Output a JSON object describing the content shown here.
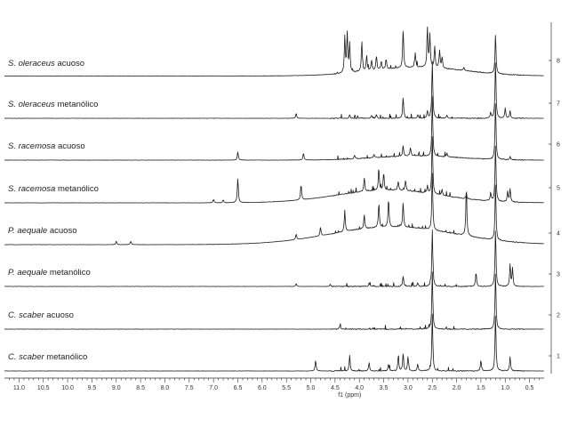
{
  "chart_data": {
    "type": "line",
    "xlabel": "f1 (ppm)",
    "x_ticks": [
      "11.0",
      "10.5",
      "10.0",
      "9.5",
      "9.0",
      "8.5",
      "8.0",
      "7.5",
      "7.0",
      "6.5",
      "6.0",
      "5.5",
      "5.0",
      "4.5",
      "4.0",
      "3.5",
      "3.0",
      "2.5",
      "2.0",
      "1.5",
      "1.0",
      "0.5"
    ],
    "xlim": [
      11.3,
      0.2
    ],
    "x_reversed": true,
    "right_axis_ticks": [
      "1",
      "2",
      "3",
      "4",
      "5",
      "6",
      "7",
      "8"
    ],
    "grid": false,
    "series": [
      {
        "species": "S. oleraceus",
        "extract": "acuoso",
        "index": 8,
        "baseline": 0.02,
        "hump": {
          "center": 2.8,
          "width": 1.4,
          "height": 0.12
        },
        "peaks": [
          [
            4.3,
            0.5
          ],
          [
            4.25,
            0.55
          ],
          [
            4.2,
            0.4
          ],
          [
            3.95,
            0.42
          ],
          [
            3.85,
            0.22
          ],
          [
            3.75,
            0.15
          ],
          [
            3.65,
            0.2
          ],
          [
            3.55,
            0.12
          ],
          [
            3.45,
            0.15
          ],
          [
            3.1,
            0.55
          ],
          [
            2.85,
            0.2
          ],
          [
            2.6,
            0.55
          ],
          [
            2.55,
            0.45
          ],
          [
            2.45,
            0.3
          ],
          [
            2.35,
            0.25
          ],
          [
            2.3,
            0.15
          ],
          [
            1.85,
            0.05
          ],
          [
            1.2,
            0.55
          ]
        ]
      },
      {
        "species": "S. oleraceus",
        "extract": "metanólico",
        "index": 7,
        "baseline": 0.0,
        "hump": null,
        "peaks": [
          [
            5.3,
            0.07
          ],
          [
            4.2,
            0.05
          ],
          [
            3.75,
            0.04
          ],
          [
            3.65,
            0.05
          ],
          [
            3.1,
            0.3
          ],
          [
            2.8,
            0.05
          ],
          [
            2.6,
            0.1
          ],
          [
            2.5,
            0.8
          ],
          [
            2.2,
            0.05
          ],
          [
            1.3,
            0.08
          ],
          [
            1.2,
            0.8
          ],
          [
            1.0,
            0.15
          ],
          [
            0.9,
            0.1
          ]
        ]
      },
      {
        "species": "S. racemosa",
        "extract": "acuoso",
        "index": 6,
        "baseline": 0.0,
        "hump": {
          "center": 2.8,
          "width": 1.2,
          "height": 0.06
        },
        "peaks": [
          [
            6.5,
            0.12
          ],
          [
            5.15,
            0.1
          ],
          [
            4.1,
            0.05
          ],
          [
            3.7,
            0.05
          ],
          [
            3.1,
            0.15
          ],
          [
            2.95,
            0.12
          ],
          [
            2.5,
            0.8
          ],
          [
            2.2,
            0.05
          ],
          [
            1.2,
            0.8
          ],
          [
            0.9,
            0.05
          ]
        ]
      },
      {
        "species": "S. racemosa",
        "extract": "metanólico",
        "index": 5,
        "baseline": 0.0,
        "hump": {
          "center": 3.4,
          "width": 1.5,
          "height": 0.18
        },
        "peaks": [
          [
            7.0,
            0.05
          ],
          [
            6.8,
            0.04
          ],
          [
            6.5,
            0.35
          ],
          [
            5.2,
            0.22
          ],
          [
            3.9,
            0.18
          ],
          [
            3.6,
            0.3
          ],
          [
            3.5,
            0.25
          ],
          [
            3.2,
            0.12
          ],
          [
            3.05,
            0.15
          ],
          [
            2.6,
            0.1
          ],
          [
            2.5,
            0.8
          ],
          [
            2.3,
            0.08
          ],
          [
            1.8,
            0.06
          ],
          [
            1.3,
            0.12
          ],
          [
            1.2,
            0.8
          ],
          [
            0.95,
            0.15
          ],
          [
            0.9,
            0.18
          ]
        ]
      },
      {
        "species": "P. aequale",
        "extract": "acuoso",
        "index": 4,
        "baseline": 0.0,
        "hump": {
          "center": 3.3,
          "width": 1.8,
          "height": 0.25
        },
        "peaks": [
          [
            9.0,
            0.05
          ],
          [
            8.7,
            0.05
          ],
          [
            5.3,
            0.08
          ],
          [
            4.8,
            0.12
          ],
          [
            4.3,
            0.3
          ],
          [
            3.9,
            0.2
          ],
          [
            3.6,
            0.35
          ],
          [
            3.4,
            0.4
          ],
          [
            3.1,
            0.35
          ],
          [
            2.5,
            0.8
          ],
          [
            1.8,
            0.7
          ],
          [
            1.2,
            0.8
          ]
        ]
      },
      {
        "species": "P. aequale",
        "extract": "metanólico",
        "index": 3,
        "baseline": 0.0,
        "hump": null,
        "peaks": [
          [
            5.3,
            0.04
          ],
          [
            4.6,
            0.03
          ],
          [
            3.8,
            0.05
          ],
          [
            3.1,
            0.15
          ],
          [
            2.8,
            0.05
          ],
          [
            2.5,
            0.8
          ],
          [
            1.6,
            0.2
          ],
          [
            1.2,
            0.8
          ],
          [
            0.9,
            0.3
          ],
          [
            0.85,
            0.25
          ]
        ]
      },
      {
        "species": "C. scaber",
        "extract": "acuoso",
        "index": 2,
        "baseline": 0.0,
        "hump": null,
        "peaks": [
          [
            4.4,
            0.05
          ],
          [
            2.5,
            0.8
          ],
          [
            1.2,
            0.8
          ]
        ]
      },
      {
        "species": "C. scaber",
        "extract": "metanólico",
        "index": 1,
        "baseline": 0.0,
        "hump": null,
        "peaks": [
          [
            4.9,
            0.15
          ],
          [
            4.2,
            0.22
          ],
          [
            3.8,
            0.12
          ],
          [
            3.4,
            0.1
          ],
          [
            3.2,
            0.2
          ],
          [
            3.1,
            0.25
          ],
          [
            3.0,
            0.2
          ],
          [
            2.8,
            0.1
          ],
          [
            2.5,
            0.8
          ],
          [
            1.5,
            0.15
          ],
          [
            1.2,
            0.8
          ],
          [
            0.9,
            0.2
          ]
        ]
      }
    ]
  }
}
